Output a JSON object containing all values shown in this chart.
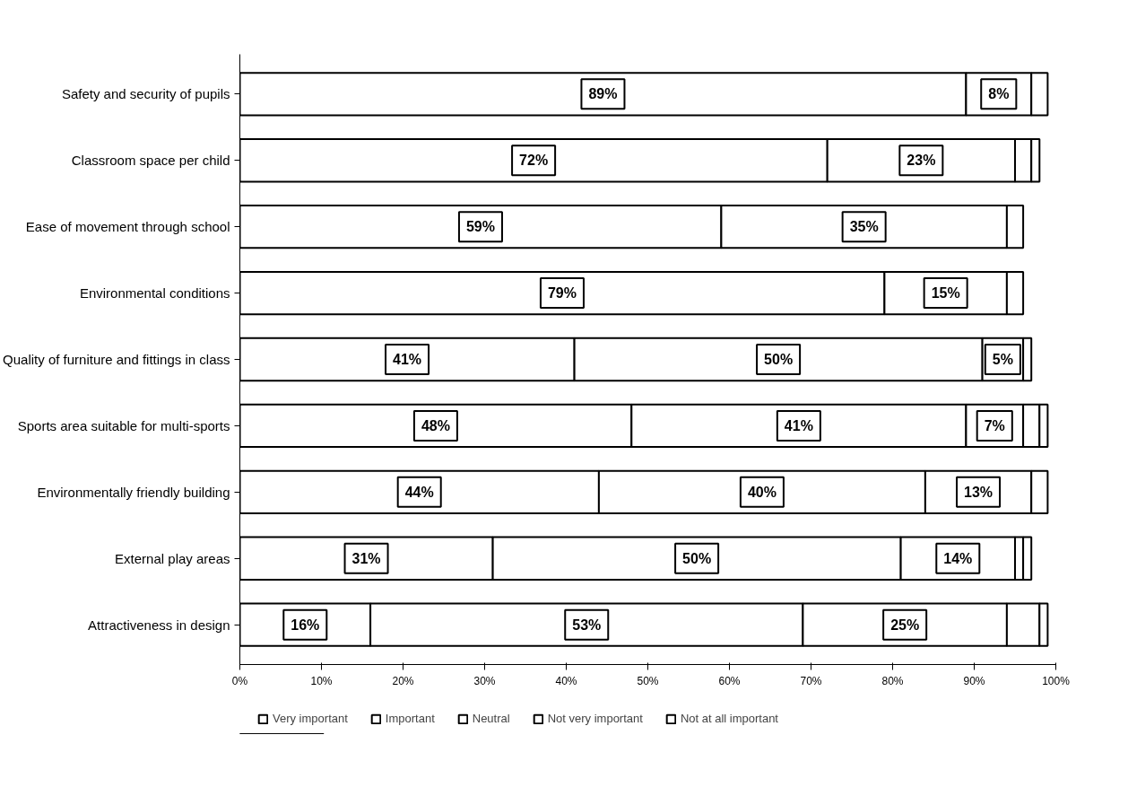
{
  "chart_data": {
    "type": "bar",
    "orientation": "horizontal",
    "stacked": true,
    "categories": [
      "Safety and security of pupils",
      "Classroom space per child",
      "Ease of movement through school",
      "Environmental conditions",
      "Quality of furniture and fittings in class",
      "Sports area suitable for multi-sports",
      "Environmentally friendly building",
      "External play areas",
      "Attractiveness in design"
    ],
    "series": [
      {
        "name": "Very important",
        "color": "#ffffff",
        "values": [
          89,
          72,
          59,
          79,
          41,
          48,
          44,
          31,
          16
        ],
        "value_labels": [
          "89%",
          "72%",
          "59%",
          "79%",
          "41%",
          "48%",
          "44%",
          "31%",
          "16%"
        ]
      },
      {
        "name": "Important",
        "color": "#ffffff",
        "values": [
          8,
          23,
          35,
          15,
          50,
          41,
          40,
          50,
          53
        ],
        "value_labels": [
          "8%",
          "23%",
          "35%",
          "15%",
          "50%",
          "41%",
          "40%",
          "50%",
          "53%"
        ]
      },
      {
        "name": "Neutral",
        "color": "#ffffff",
        "values": [
          2,
          2,
          2,
          2,
          5,
          7,
          13,
          14,
          25
        ],
        "value_labels": [
          null,
          null,
          null,
          null,
          "5%",
          "7%",
          "13%",
          "14%",
          "25%"
        ]
      },
      {
        "name": "Not very important",
        "color": "#ffffff",
        "values": [
          null,
          1,
          null,
          null,
          1,
          2,
          2,
          1,
          4
        ]
      },
      {
        "name": "Not at all important",
        "color": "#ffffff",
        "values": [
          null,
          null,
          null,
          null,
          null,
          1,
          null,
          1,
          1
        ]
      }
    ],
    "xlim": [
      0,
      100
    ],
    "xticks": [
      {
        "value": 0,
        "label": "0%"
      },
      {
        "value": 10,
        "label": "10%"
      },
      {
        "value": 20,
        "label": "20%"
      },
      {
        "value": 30,
        "label": "30%"
      },
      {
        "value": 40,
        "label": "40%"
      },
      {
        "value": 50,
        "label": "50%"
      },
      {
        "value": 60,
        "label": "60%"
      },
      {
        "value": 70,
        "label": "70%"
      },
      {
        "value": 80,
        "label": "80%"
      },
      {
        "value": 90,
        "label": "90%"
      },
      {
        "value": 100,
        "label": "100%"
      }
    ],
    "grid": false,
    "legend": "bottom"
  }
}
